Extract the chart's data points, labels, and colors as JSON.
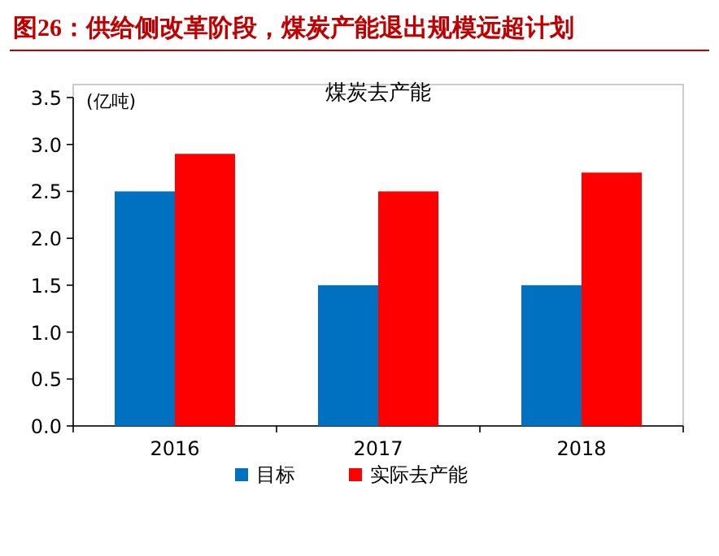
{
  "chart_data": {
    "type": "bar",
    "title": "图26：供给侧改革阶段，煤炭产能退出规模远超计划",
    "subtitle": "煤炭去产能",
    "ylabel": "(亿吨)",
    "categories": [
      "2016",
      "2017",
      "2018"
    ],
    "series": [
      {
        "name": "目标",
        "color": "#0070c0",
        "values": [
          2.5,
          1.5,
          1.5
        ]
      },
      {
        "name": "实际去产能",
        "color": "#ff0000",
        "values": [
          2.9,
          2.5,
          2.7
        ]
      }
    ],
    "ylim": [
      0,
      3.5
    ],
    "yticks": [
      {
        "value": 0,
        "label": "0.0"
      },
      {
        "value": 0.5,
        "label": "0.5"
      },
      {
        "value": 1,
        "label": "1.0"
      },
      {
        "value": 1.5,
        "label": "1.5"
      },
      {
        "value": 2,
        "label": "2.0"
      },
      {
        "value": 2.5,
        "label": "2.5"
      },
      {
        "value": 3,
        "label": "3.0"
      },
      {
        "value": 3.5,
        "label": "3.5"
      }
    ],
    "legend": "bottom"
  }
}
